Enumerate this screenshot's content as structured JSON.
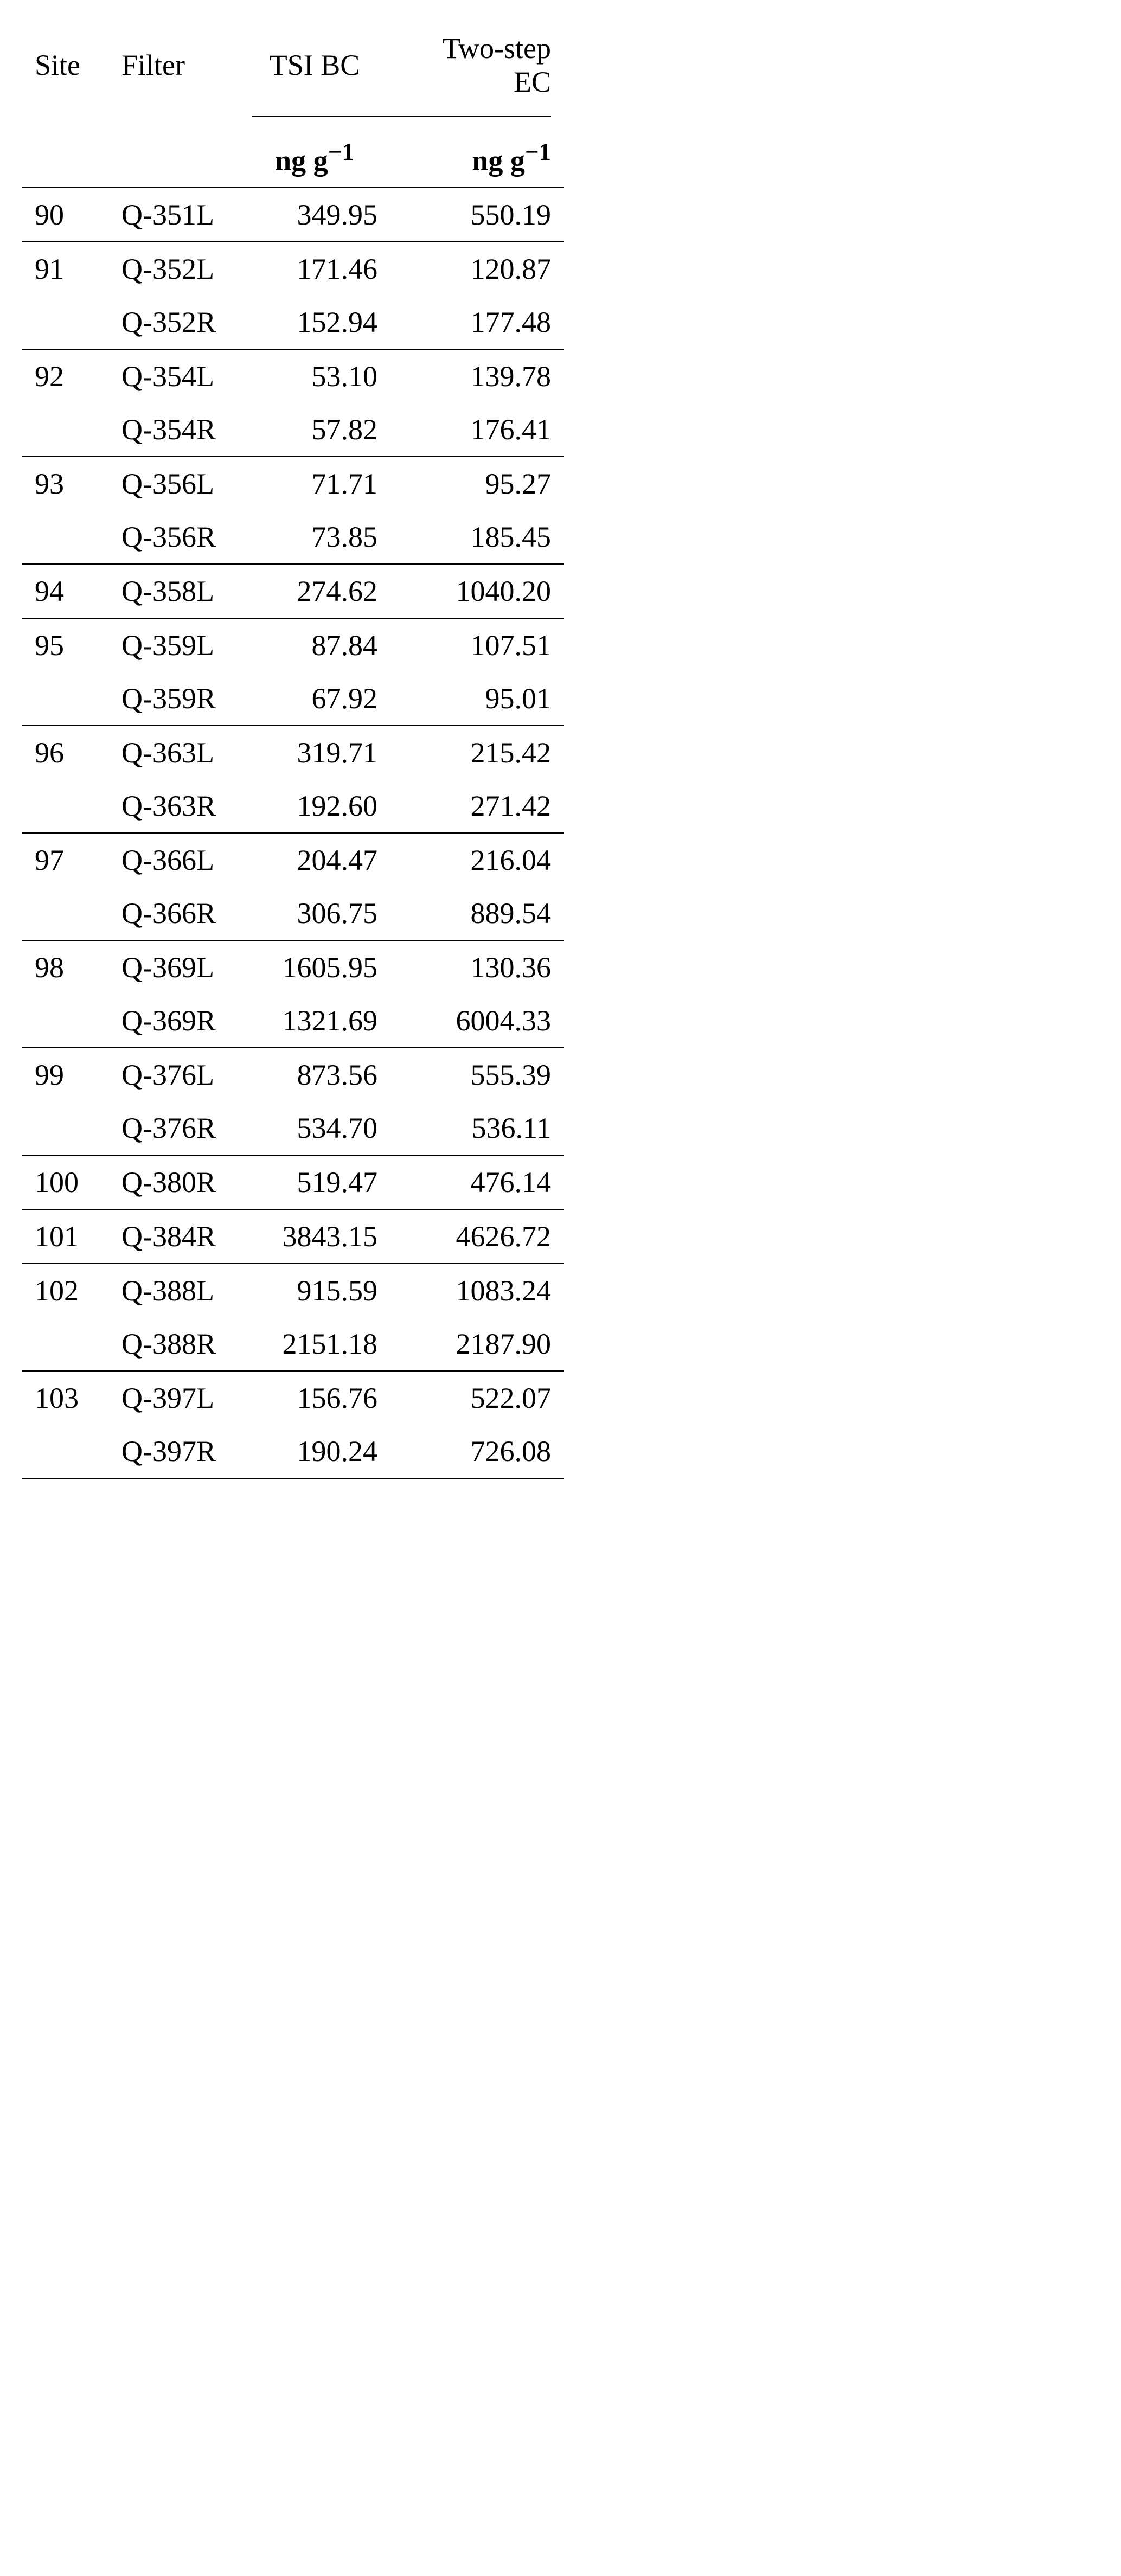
{
  "headers": {
    "site": "Site",
    "filter": "Filter",
    "tsi": "TSI BC",
    "ec": "Two-step EC",
    "unit": "ng g"
  },
  "groups": [
    {
      "site": "90",
      "rows": [
        {
          "filter": "Q-351L",
          "tsi": "349.95",
          "ec": "550.19"
        }
      ]
    },
    {
      "site": "91",
      "rows": [
        {
          "filter": "Q-352L",
          "tsi": "171.46",
          "ec": "120.87"
        },
        {
          "filter": "Q-352R",
          "tsi": "152.94",
          "ec": "177.48"
        }
      ]
    },
    {
      "site": "92",
      "rows": [
        {
          "filter": "Q-354L",
          "tsi": "53.10",
          "ec": "139.78"
        },
        {
          "filter": "Q-354R",
          "tsi": "57.82",
          "ec": "176.41"
        }
      ]
    },
    {
      "site": "93",
      "rows": [
        {
          "filter": "Q-356L",
          "tsi": "71.71",
          "ec": "95.27"
        },
        {
          "filter": "Q-356R",
          "tsi": "73.85",
          "ec": "185.45"
        }
      ]
    },
    {
      "site": "94",
      "rows": [
        {
          "filter": "Q-358L",
          "tsi": "274.62",
          "ec": "1040.20"
        }
      ]
    },
    {
      "site": "95",
      "rows": [
        {
          "filter": "Q-359L",
          "tsi": "87.84",
          "ec": "107.51"
        },
        {
          "filter": "Q-359R",
          "tsi": "67.92",
          "ec": "95.01"
        }
      ]
    },
    {
      "site": "96",
      "rows": [
        {
          "filter": "Q-363L",
          "tsi": "319.71",
          "ec": "215.42"
        },
        {
          "filter": "Q-363R",
          "tsi": "192.60",
          "ec": "271.42"
        }
      ]
    },
    {
      "site": "97",
      "rows": [
        {
          "filter": "Q-366L",
          "tsi": "204.47",
          "ec": "216.04"
        },
        {
          "filter": "Q-366R",
          "tsi": "306.75",
          "ec": "889.54"
        }
      ]
    },
    {
      "site": "98",
      "rows": [
        {
          "filter": "Q-369L",
          "tsi": "1605.95",
          "ec": "130.36"
        },
        {
          "filter": "Q-369R",
          "tsi": "1321.69",
          "ec": "6004.33"
        }
      ]
    },
    {
      "site": "99",
      "rows": [
        {
          "filter": "Q-376L",
          "tsi": "873.56",
          "ec": "555.39"
        },
        {
          "filter": "Q-376R",
          "tsi": "534.70",
          "ec": "536.11"
        }
      ]
    },
    {
      "site": "100",
      "rows": [
        {
          "filter": "Q-380R",
          "tsi": "519.47",
          "ec": "476.14"
        }
      ]
    },
    {
      "site": "101",
      "rows": [
        {
          "filter": "Q-384R",
          "tsi": "3843.15",
          "ec": "4626.72"
        }
      ]
    },
    {
      "site": "102",
      "rows": [
        {
          "filter": "Q-388L",
          "tsi": "915.59",
          "ec": "1083.24"
        },
        {
          "filter": "Q-388R",
          "tsi": "2151.18",
          "ec": "2187.90"
        }
      ]
    },
    {
      "site": "103",
      "rows": [
        {
          "filter": "Q-397L",
          "tsi": "156.76",
          "ec": "522.07"
        },
        {
          "filter": "Q-397R",
          "tsi": "190.24",
          "ec": "726.08"
        }
      ]
    }
  ]
}
